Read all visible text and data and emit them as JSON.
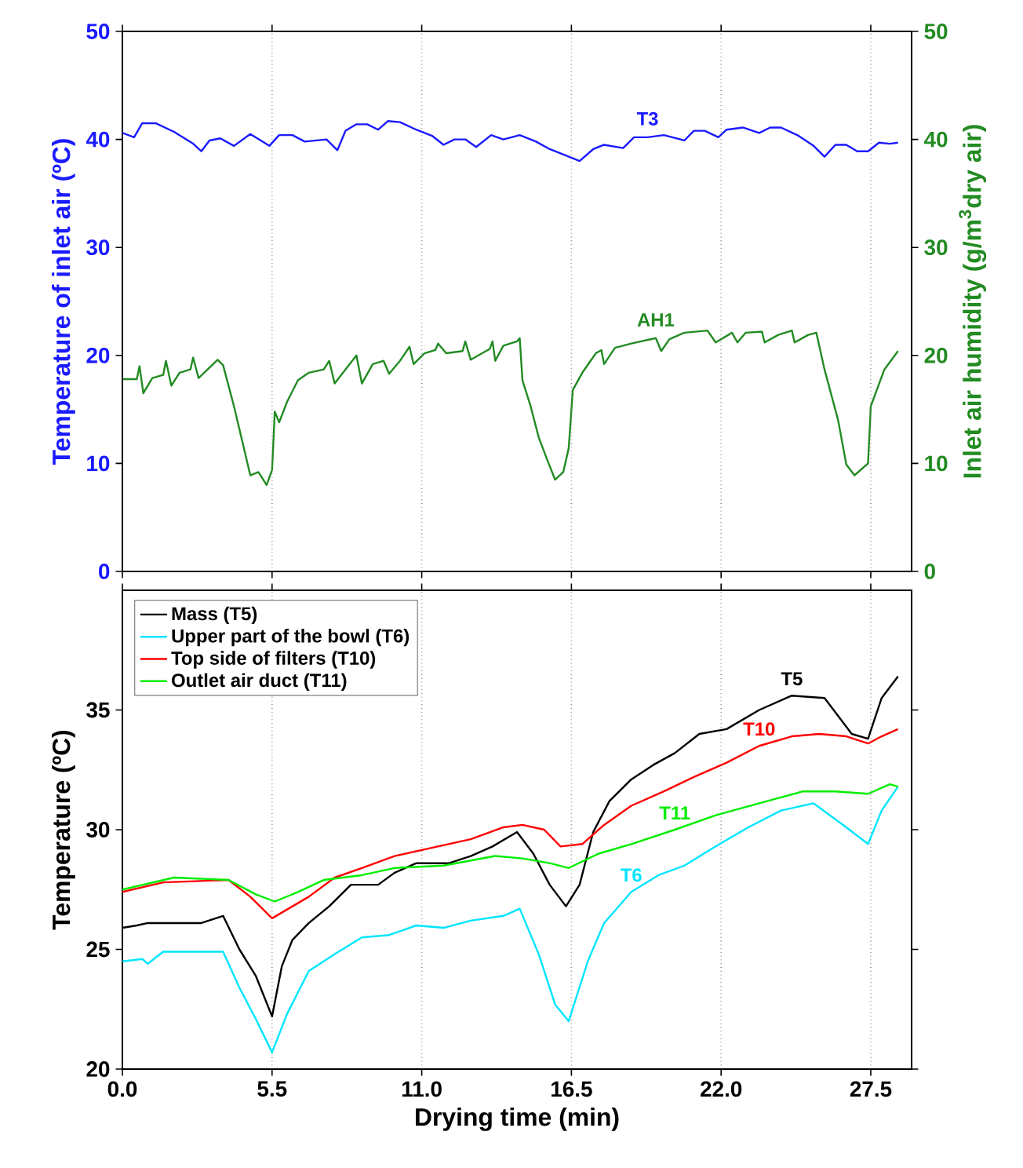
{
  "chart_data": [
    {
      "type": "line",
      "ylabel": "Temperature of inlet air (ºC)",
      "y2label": "Inlet air humidity (g/m$^{3}$dry air)",
      "xlim": [
        0,
        29
      ],
      "xticks": [
        {
          "value": 0,
          "label": null
        },
        {
          "value": 5.5,
          "label": null
        },
        {
          "value": 11,
          "label": null
        },
        {
          "value": 16.5,
          "label": null
        },
        {
          "value": 22,
          "label": null
        },
        {
          "value": 27.5,
          "label": null
        }
      ],
      "ylim": [
        0,
        50
      ],
      "yticks": [
        0,
        10,
        20,
        30,
        40,
        50
      ],
      "y2lim": [
        0,
        50
      ],
      "y2ticks": [
        0,
        10,
        20,
        30,
        40,
        50
      ],
      "tick_labels": "y",
      "grid": "x",
      "series": [
        {
          "name": "T3",
          "color": "#1a1aff",
          "x": [
            0,
            0.43,
            0.73,
            1.22,
            1.9,
            2.6,
            2.9,
            3.2,
            3.6,
            4.1,
            4.7,
            5.4,
            5.76,
            6.25,
            6.7,
            7.5,
            7.9,
            8.2,
            8.6,
            9.0,
            9.4,
            9.76,
            10.2,
            10.8,
            11.4,
            11.8,
            12.2,
            12.6,
            13.0,
            13.55,
            14.0,
            14.6,
            15.2,
            15.7,
            16.3,
            16.8,
            17.3,
            17.7,
            18.4,
            18.8,
            19.3,
            19.9,
            20.65,
            21.0,
            21.4,
            21.9,
            22.2,
            22.8,
            23.4,
            23.8,
            24.2,
            24.8,
            25.4,
            25.8,
            26.2,
            26.6,
            27.0,
            27.4,
            27.8,
            28.2,
            28.5
          ],
          "values": [
            40.6,
            40.2,
            41.5,
            41.5,
            40.7,
            39.6,
            38.9,
            39.9,
            40.1,
            39.4,
            40.5,
            39.4,
            40.4,
            40.4,
            39.8,
            40.0,
            39.0,
            40.8,
            41.4,
            41.4,
            40.9,
            41.7,
            41.6,
            40.9,
            40.3,
            39.5,
            40.0,
            40.0,
            39.3,
            40.4,
            40.0,
            40.4,
            39.8,
            39.1,
            38.5,
            38.0,
            39.1,
            39.5,
            39.2,
            40.2,
            40.2,
            40.4,
            39.9,
            40.8,
            40.8,
            40.2,
            40.9,
            41.1,
            40.6,
            41.1,
            41.1,
            40.4,
            39.4,
            38.4,
            39.5,
            39.5,
            38.9,
            38.9,
            39.7,
            39.6,
            39.7
          ]
        },
        {
          "name": "AH1",
          "color": "#228b22",
          "axis": "y2",
          "x": [
            0,
            0.53,
            0.63,
            0.77,
            1.1,
            1.5,
            1.6,
            1.8,
            2.1,
            2.5,
            2.6,
            2.8,
            3.5,
            3.7,
            4.1,
            4.4,
            4.7,
            5.0,
            5.3,
            5.5,
            5.6,
            5.76,
            6.05,
            6.45,
            6.85,
            7.4,
            7.6,
            7.8,
            8.2,
            8.6,
            8.8,
            9.2,
            9.6,
            9.8,
            10.2,
            10.55,
            10.7,
            11.1,
            11.5,
            11.6,
            11.9,
            12.5,
            12.6,
            12.8,
            13.5,
            13.6,
            13.7,
            14.0,
            14.5,
            14.6,
            14.7,
            15.0,
            15.3,
            15.6,
            15.9,
            16.2,
            16.4,
            16.55,
            16.9,
            17.4,
            17.6,
            17.7,
            18.1,
            18.7,
            19.6,
            19.8,
            20.1,
            20.65,
            21.5,
            21.8,
            22.4,
            22.6,
            22.9,
            23.5,
            23.6,
            24.1,
            24.6,
            24.7,
            25.2,
            25.5,
            25.8,
            26.3,
            26.6,
            26.9,
            27.4,
            27.5,
            28.0,
            28.5
          ],
          "values": [
            17.8,
            17.8,
            19.0,
            16.5,
            17.9,
            18.2,
            19.5,
            17.2,
            18.4,
            18.7,
            19.8,
            17.9,
            19.6,
            19.1,
            15.3,
            12.1,
            8.9,
            9.2,
            8.0,
            9.4,
            14.8,
            13.8,
            15.7,
            17.7,
            18.4,
            18.7,
            19.5,
            17.4,
            18.7,
            20.0,
            17.4,
            19.2,
            19.5,
            18.3,
            19.5,
            20.8,
            19.2,
            20.2,
            20.5,
            21.1,
            20.2,
            20.4,
            21.3,
            19.6,
            20.6,
            21.3,
            19.5,
            20.9,
            21.3,
            21.6,
            17.7,
            15.3,
            12.4,
            10.4,
            8.5,
            9.2,
            11.4,
            16.8,
            18.4,
            20.2,
            20.5,
            19.2,
            20.7,
            21.1,
            21.6,
            20.4,
            21.5,
            22.1,
            22.3,
            21.2,
            22.1,
            21.2,
            22.1,
            22.2,
            21.2,
            21.9,
            22.3,
            21.2,
            21.9,
            22.1,
            18.7,
            14.0,
            9.9,
            8.9,
            10.0,
            15.3,
            18.7,
            20.4
          ]
        }
      ]
    },
    {
      "type": "line",
      "xlabel": "Drying time (min)",
      "ylabel": "Temperature (ºC)",
      "xlim": [
        0,
        29
      ],
      "xticks": [
        {
          "value": 0,
          "label": "0.0"
        },
        5.5,
        {
          "value": 11,
          "label": "11.0"
        },
        16.5,
        {
          "value": 22,
          "label": "22.0"
        },
        27.5
      ],
      "ylim": [
        20,
        40
      ],
      "yticks": [
        20,
        25,
        30,
        35
      ],
      "grid": "x",
      "legend": "top left",
      "series": [
        {
          "name": "Mass (T5)",
          "color": "#000000",
          "x": [
            0,
            0.53,
            0.93,
            2.9,
            3.7,
            4.3,
            4.9,
            5.5,
            5.86,
            6.25,
            6.85,
            7.6,
            8.4,
            9.4,
            10.0,
            10.8,
            12.0,
            12.8,
            13.6,
            14.5,
            15.1,
            15.7,
            16.3,
            16.8,
            17.3,
            17.9,
            18.7,
            19.5,
            20.3,
            21.2,
            22.2,
            23.4,
            24.6,
            25.8,
            26.8,
            27.4,
            27.9,
            28.5
          ],
          "values": [
            25.9,
            26.0,
            26.1,
            26.1,
            26.4,
            25.0,
            23.9,
            22.2,
            24.3,
            25.4,
            26.1,
            26.8,
            27.7,
            27.7,
            28.2,
            28.6,
            28.6,
            28.9,
            29.3,
            29.9,
            29.0,
            27.7,
            26.8,
            27.7,
            29.9,
            31.2,
            32.1,
            32.7,
            33.2,
            34.0,
            34.2,
            35.0,
            35.6,
            35.5,
            34.0,
            33.8,
            35.5,
            36.4
          ]
        },
        {
          "name": "Upper part of the bowl (T6)",
          "color": "#00e5ff",
          "x": [
            0,
            0.73,
            0.93,
            1.5,
            3.7,
            4.3,
            4.9,
            5.5,
            6.05,
            6.85,
            7.8,
            8.8,
            9.8,
            10.8,
            11.8,
            12.8,
            14.0,
            14.6,
            15.3,
            15.9,
            16.4,
            17.1,
            17.7,
            18.7,
            19.7,
            20.65,
            21.8,
            23.0,
            24.2,
            25.4,
            26.6,
            27.4,
            27.9,
            28.5
          ],
          "values": [
            24.5,
            24.6,
            24.4,
            24.9,
            24.9,
            23.4,
            22.1,
            20.7,
            22.3,
            24.1,
            24.8,
            25.5,
            25.6,
            26.0,
            25.9,
            26.2,
            26.4,
            26.7,
            24.8,
            22.7,
            22.0,
            24.5,
            26.1,
            27.4,
            28.1,
            28.5,
            29.3,
            30.1,
            30.8,
            31.1,
            30.1,
            29.4,
            30.8,
            31.8
          ]
        },
        {
          "name": "Top side of filters (T10)",
          "color": "#ff0000",
          "x": [
            0,
            1.5,
            3.9,
            4.7,
            5.5,
            6.25,
            6.85,
            7.8,
            8.8,
            10.0,
            11.2,
            12.8,
            14.0,
            14.7,
            15.5,
            16.1,
            16.9,
            17.7,
            18.7,
            19.9,
            21.0,
            22.2,
            23.4,
            24.6,
            25.6,
            26.6,
            27.4,
            27.9,
            28.5
          ],
          "values": [
            27.4,
            27.8,
            27.9,
            27.2,
            26.3,
            26.8,
            27.2,
            28.0,
            28.4,
            28.9,
            29.2,
            29.6,
            30.1,
            30.2,
            30.0,
            29.3,
            29.4,
            30.2,
            31.0,
            31.6,
            32.2,
            32.8,
            33.5,
            33.9,
            34.0,
            33.9,
            33.6,
            33.9,
            34.2
          ]
        },
        {
          "name": "Outlet air duct (T11)",
          "color": "#00ee00",
          "x": [
            0,
            1.9,
            3.9,
            4.9,
            5.6,
            6.45,
            7.4,
            8.8,
            10.0,
            11.8,
            13.7,
            14.7,
            15.7,
            16.4,
            17.5,
            18.7,
            20.3,
            21.8,
            23.4,
            25.0,
            26.2,
            27.4,
            28.2,
            28.5
          ],
          "values": [
            27.5,
            28.0,
            27.9,
            27.3,
            27.0,
            27.4,
            27.9,
            28.1,
            28.4,
            28.5,
            28.9,
            28.8,
            28.6,
            28.4,
            29.0,
            29.4,
            30.0,
            30.6,
            31.1,
            31.6,
            31.6,
            31.5,
            31.9,
            31.8
          ]
        }
      ],
      "annotations": [
        "T5",
        "T6",
        "T10",
        "T11"
      ]
    }
  ]
}
